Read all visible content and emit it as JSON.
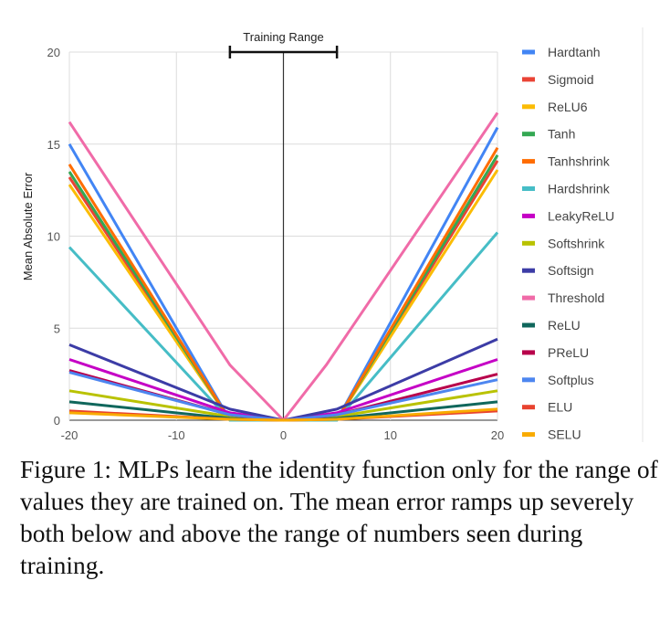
{
  "chart_data": {
    "type": "line",
    "title": "",
    "xlabel": "",
    "ylabel": "Mean Absolute Error",
    "xlim": [
      -20,
      20
    ],
    "ylim": [
      0,
      20
    ],
    "x_ticks": [
      "-20",
      "-10",
      "0",
      "10",
      "20"
    ],
    "y_ticks": [
      "0",
      "5",
      "10",
      "15",
      "20"
    ],
    "grid": true,
    "legend_position": "right",
    "annotations": [
      {
        "text": "Training Range",
        "x_range": [
          -5,
          5
        ]
      }
    ],
    "series": [
      {
        "name": "Hardtanh",
        "color": "#4285f4",
        "points": [
          [
            -20,
            15.0
          ],
          [
            -5,
            0
          ],
          [
            5,
            0
          ],
          [
            20,
            15.9
          ]
        ]
      },
      {
        "name": "Sigmoid",
        "color": "#ea4335",
        "points": [
          [
            -20,
            13.2
          ],
          [
            -5,
            0
          ],
          [
            5,
            0
          ],
          [
            20,
            14.1
          ]
        ]
      },
      {
        "name": "ReLU6",
        "color": "#fbbc04",
        "points": [
          [
            -20,
            12.8
          ],
          [
            -5,
            0
          ],
          [
            5,
            0
          ],
          [
            20,
            13.6
          ]
        ]
      },
      {
        "name": "Tanh",
        "color": "#34a853",
        "points": [
          [
            -20,
            13.5
          ],
          [
            -5,
            0
          ],
          [
            5,
            0
          ],
          [
            20,
            14.4
          ]
        ]
      },
      {
        "name": "Tanhshrink",
        "color": "#ff6d01",
        "points": [
          [
            -20,
            13.9
          ],
          [
            -5,
            0
          ],
          [
            5,
            0
          ],
          [
            20,
            14.8
          ]
        ]
      },
      {
        "name": "Hardshrink",
        "color": "#46bdc6",
        "points": [
          [
            -20,
            9.4
          ],
          [
            -5,
            0
          ],
          [
            5,
            0
          ],
          [
            20,
            10.2
          ]
        ]
      },
      {
        "name": "LeakyReLU",
        "color": "#c500c5",
        "points": [
          [
            -20,
            3.3
          ],
          [
            -5,
            0.4
          ],
          [
            0,
            0
          ],
          [
            5,
            0.4
          ],
          [
            20,
            3.3
          ]
        ]
      },
      {
        "name": "Softshrink",
        "color": "#b9c200",
        "points": [
          [
            -20,
            1.6
          ],
          [
            -5,
            0.2
          ],
          [
            0,
            0
          ],
          [
            5,
            0.2
          ],
          [
            20,
            1.6
          ]
        ]
      },
      {
        "name": "Softsign",
        "color": "#3c3ca6",
        "points": [
          [
            -20,
            4.1
          ],
          [
            -5,
            0.6
          ],
          [
            0,
            0
          ],
          [
            5,
            0.6
          ],
          [
            20,
            4.4
          ]
        ]
      },
      {
        "name": "Threshold",
        "color": "#f06ba8",
        "points": [
          [
            -20,
            16.2
          ],
          [
            -5,
            3.0
          ],
          [
            0,
            0
          ],
          [
            4,
            3.0
          ],
          [
            20,
            16.7
          ]
        ]
      },
      {
        "name": "ReLU",
        "color": "#10675c",
        "points": [
          [
            -20,
            1.0
          ],
          [
            -5,
            0.1
          ],
          [
            0,
            0
          ],
          [
            5,
            0.1
          ],
          [
            20,
            1.0
          ]
        ]
      },
      {
        "name": "PReLU",
        "color": "#b8004b",
        "points": [
          [
            -20,
            2.7
          ],
          [
            -5,
            0.3
          ],
          [
            0,
            0
          ],
          [
            5,
            0.3
          ],
          [
            20,
            2.5
          ]
        ]
      },
      {
        "name": "Softplus",
        "color": "#4d86f0",
        "points": [
          [
            -20,
            2.6
          ],
          [
            -5,
            0.3
          ],
          [
            0,
            0
          ],
          [
            5,
            0.3
          ],
          [
            20,
            2.2
          ]
        ]
      },
      {
        "name": "ELU",
        "color": "#e8432f",
        "points": [
          [
            -20,
            0.5
          ],
          [
            -5,
            0.05
          ],
          [
            0,
            0
          ],
          [
            5,
            0.05
          ],
          [
            20,
            0.5
          ]
        ]
      },
      {
        "name": "SELU",
        "color": "#f9ab00",
        "points": [
          [
            -20,
            0.4
          ],
          [
            -5,
            0.05
          ],
          [
            0,
            0
          ],
          [
            5,
            0.05
          ],
          [
            20,
            0.6
          ]
        ]
      }
    ]
  },
  "caption": "Figure 1: MLPs learn the identity function only for the range of values they are trained on. The mean error ramps up severely both below and above the range of numbers seen during training."
}
